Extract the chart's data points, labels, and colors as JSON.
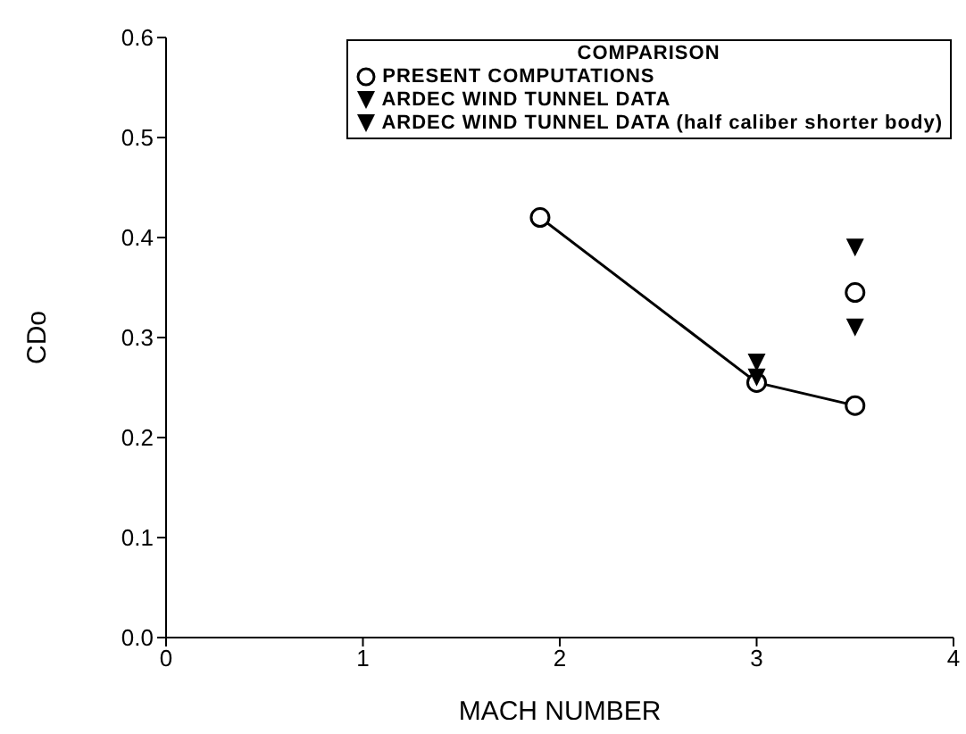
{
  "chart_data": {
    "type": "scatter",
    "xlabel": "MACH NUMBER",
    "ylabel": "CDo",
    "legend_title": "COMPARISON",
    "xlim": [
      0,
      4
    ],
    "xticks": [
      0,
      1,
      2,
      3,
      4
    ],
    "ylim": [
      0,
      0.6
    ],
    "yticks": [
      {
        "value": 0,
        "label": "0.0"
      },
      0.1,
      0.2,
      0.3,
      0.4,
      0.5,
      0.6
    ],
    "grid": false,
    "legend": "top right",
    "series": [
      {
        "name": "PRESENT COMPUTATIONS",
        "type": "line",
        "marker": "circle",
        "color": "#000000",
        "x": [
          1.9,
          3,
          3.5
        ],
        "values": [
          0.42,
          0.255,
          0.232
        ]
      },
      {
        "marker": "circle",
        "color": "#000000",
        "x": [
          3.5
        ],
        "values": [
          0.345
        ]
      },
      {
        "name": "ARDEC WIND TUNNEL DATA",
        "marker": "triangle",
        "color": "#000000",
        "x": [
          3,
          3.5
        ],
        "values": [
          0.26,
          0.31
        ]
      },
      {
        "name": "ARDEC WIND TUNNEL DATA (half caliber shorter body)",
        "marker": "triangle",
        "color": "#000000",
        "x": [
          3,
          3.5
        ],
        "values": [
          0.275,
          0.39
        ]
      }
    ]
  }
}
